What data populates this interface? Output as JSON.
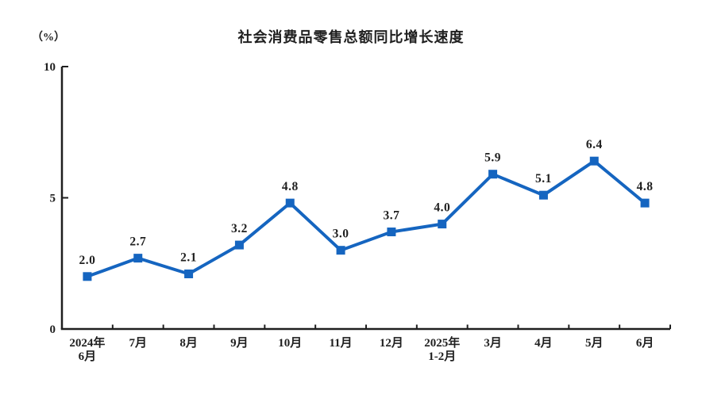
{
  "page": {
    "background": "#ffffff",
    "text_color": "#1f1f1f"
  },
  "chart_data": {
    "type": "line",
    "title": "社会消费品零售总额同比增长速度",
    "unit_label": "（%）",
    "categories": [
      "2024年\n6月",
      "7月",
      "8月",
      "9月",
      "10月",
      "11月",
      "12月",
      "2025年\n1-2月",
      "3月",
      "4月",
      "5月",
      "6月"
    ],
    "values": [
      2.0,
      2.7,
      2.1,
      3.2,
      4.8,
      3.0,
      3.7,
      4.0,
      5.9,
      5.1,
      6.4,
      4.8
    ],
    "value_labels": [
      "2.0",
      "2.7",
      "2.1",
      "3.2",
      "4.8",
      "3.0",
      "3.7",
      "4.0",
      "5.9",
      "5.1",
      "6.4",
      "4.8"
    ],
    "series_name": "社会消费品零售总额同比增长速度",
    "xlabel": "",
    "ylabel": "（%）",
    "y_ticks": [
      0,
      5,
      10
    ],
    "ylim": [
      0,
      10
    ],
    "grid": false,
    "legend": false,
    "line_color": "#1565c0",
    "marker": "square",
    "axis_color": "#1f1f1f"
  }
}
